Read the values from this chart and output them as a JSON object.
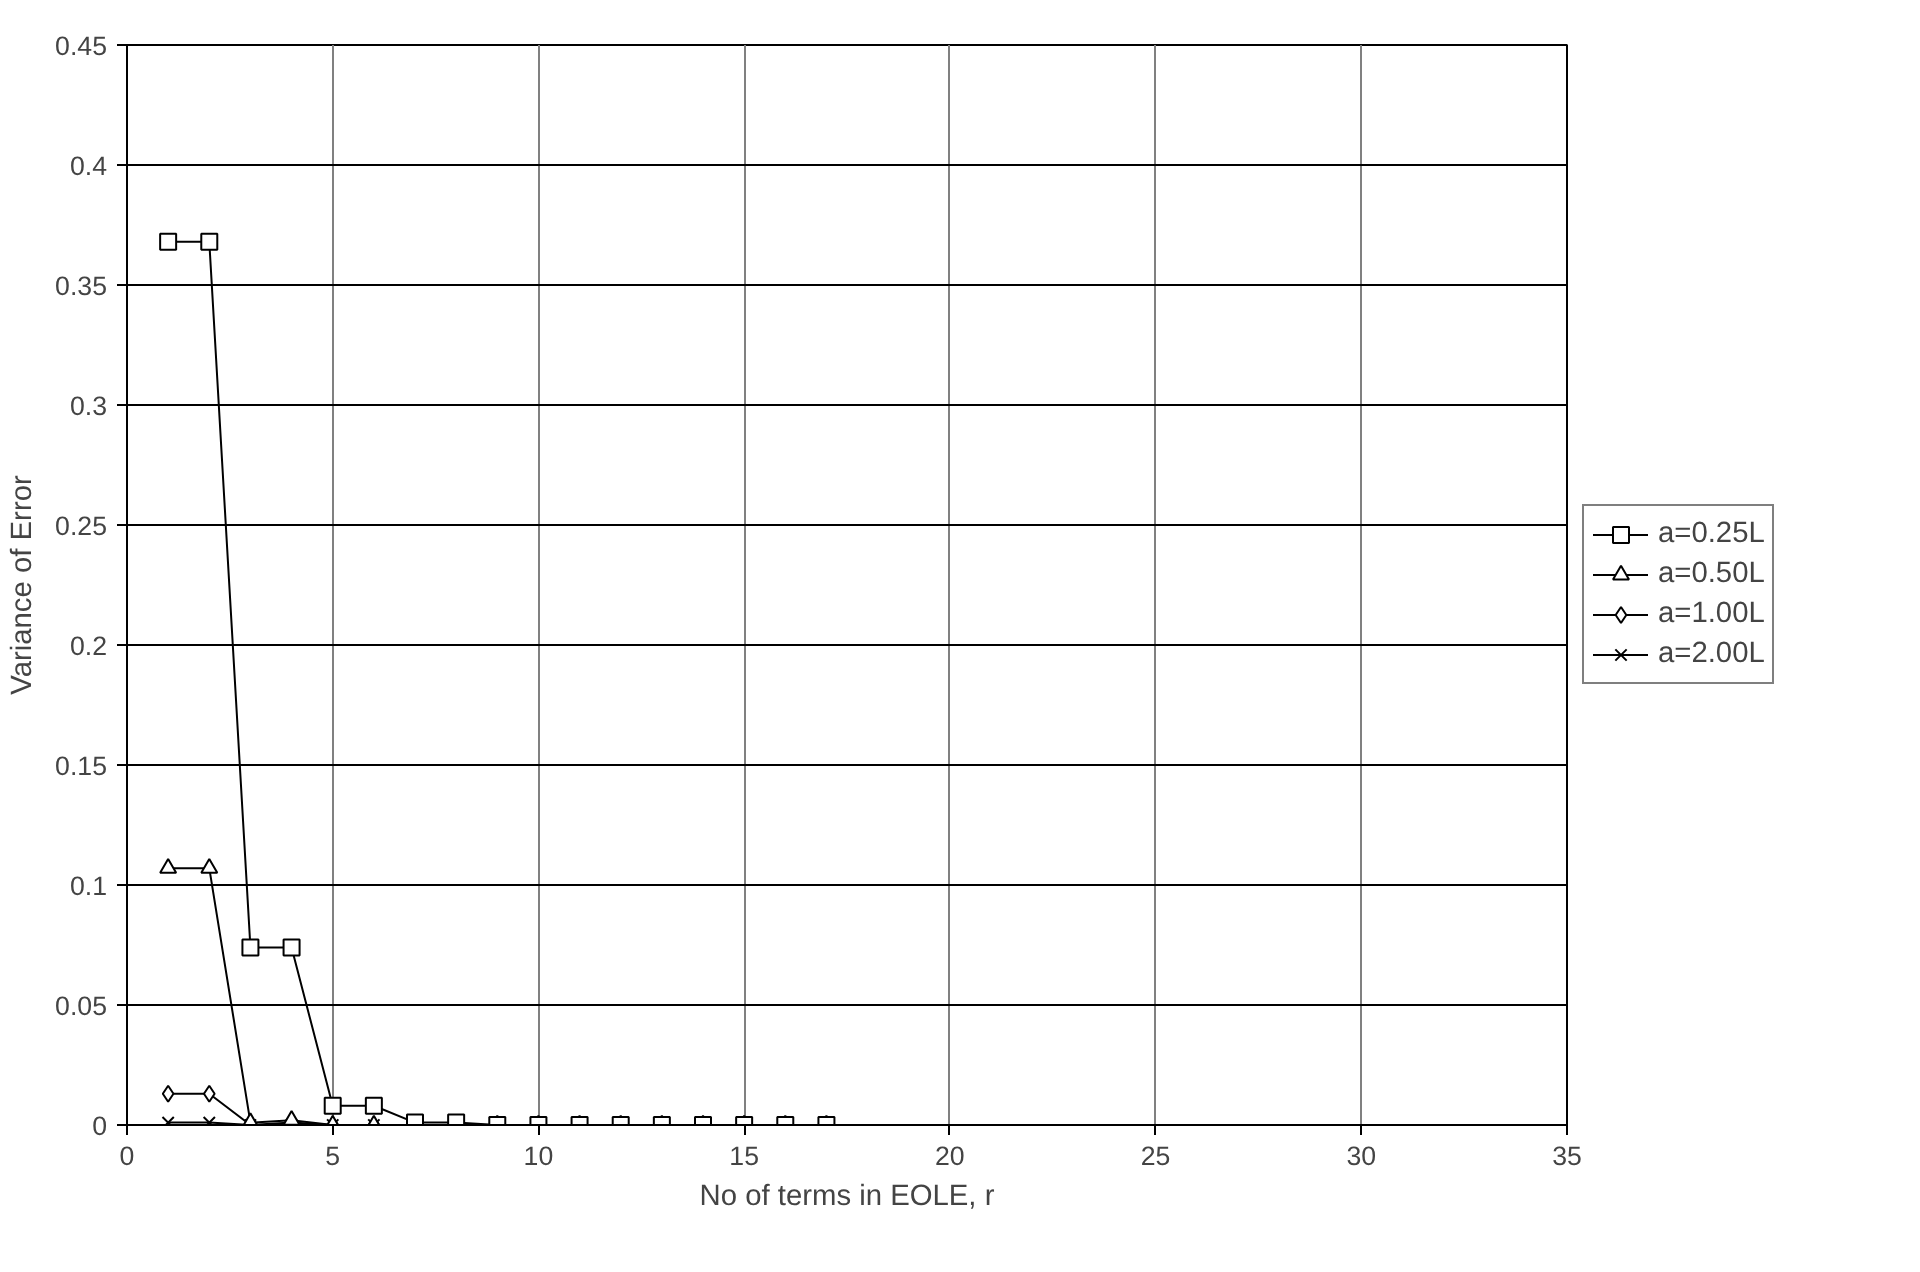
{
  "chart_data": {
    "type": "line",
    "xlabel": "No of terms in EOLE, r",
    "ylabel": "Variance of Error",
    "x": [
      1,
      2,
      3,
      4,
      5,
      6,
      7,
      8,
      9,
      10,
      11,
      12,
      13,
      14,
      15,
      16,
      17
    ],
    "series": [
      {
        "name": "a=0.25L",
        "color": "#000000",
        "marker": "square",
        "values": [
          0.368,
          0.368,
          0.074,
          0.074,
          0.008,
          0.008,
          0.001,
          0.001,
          0,
          0,
          0,
          0,
          0,
          0,
          0,
          0,
          0
        ]
      },
      {
        "name": "a=0.50L",
        "color": "#000000",
        "marker": "triangle",
        "values": [
          0.107,
          0.107,
          0.001,
          0.002,
          0,
          0,
          0,
          0,
          0,
          0,
          0,
          0,
          0,
          0,
          0,
          0,
          0
        ]
      },
      {
        "name": "a=1.00L",
        "color": "#000000",
        "marker": "diamond",
        "values": [
          0.013,
          0.013,
          0,
          0.001,
          0,
          0,
          0,
          0,
          0,
          0,
          0,
          0,
          0,
          0,
          0,
          0,
          0
        ]
      },
      {
        "name": "a=2.00L",
        "color": "#000000",
        "marker": "cross",
        "values": [
          0.001,
          0.001,
          0,
          0,
          0,
          0,
          0,
          0,
          0,
          0,
          0,
          0,
          0,
          0,
          0,
          0,
          0
        ]
      }
    ],
    "xlim": [
      0,
      35
    ],
    "xticks": [
      0,
      5,
      10,
      15,
      20,
      25,
      30,
      35
    ],
    "ylim": [
      0,
      0.45
    ],
    "yticks": [
      0,
      0.05,
      0.1,
      0.15,
      0.2,
      0.25,
      0.3,
      0.35,
      0.4,
      0.45
    ],
    "grid": true,
    "legend": "right",
    "line_style": "solid"
  }
}
